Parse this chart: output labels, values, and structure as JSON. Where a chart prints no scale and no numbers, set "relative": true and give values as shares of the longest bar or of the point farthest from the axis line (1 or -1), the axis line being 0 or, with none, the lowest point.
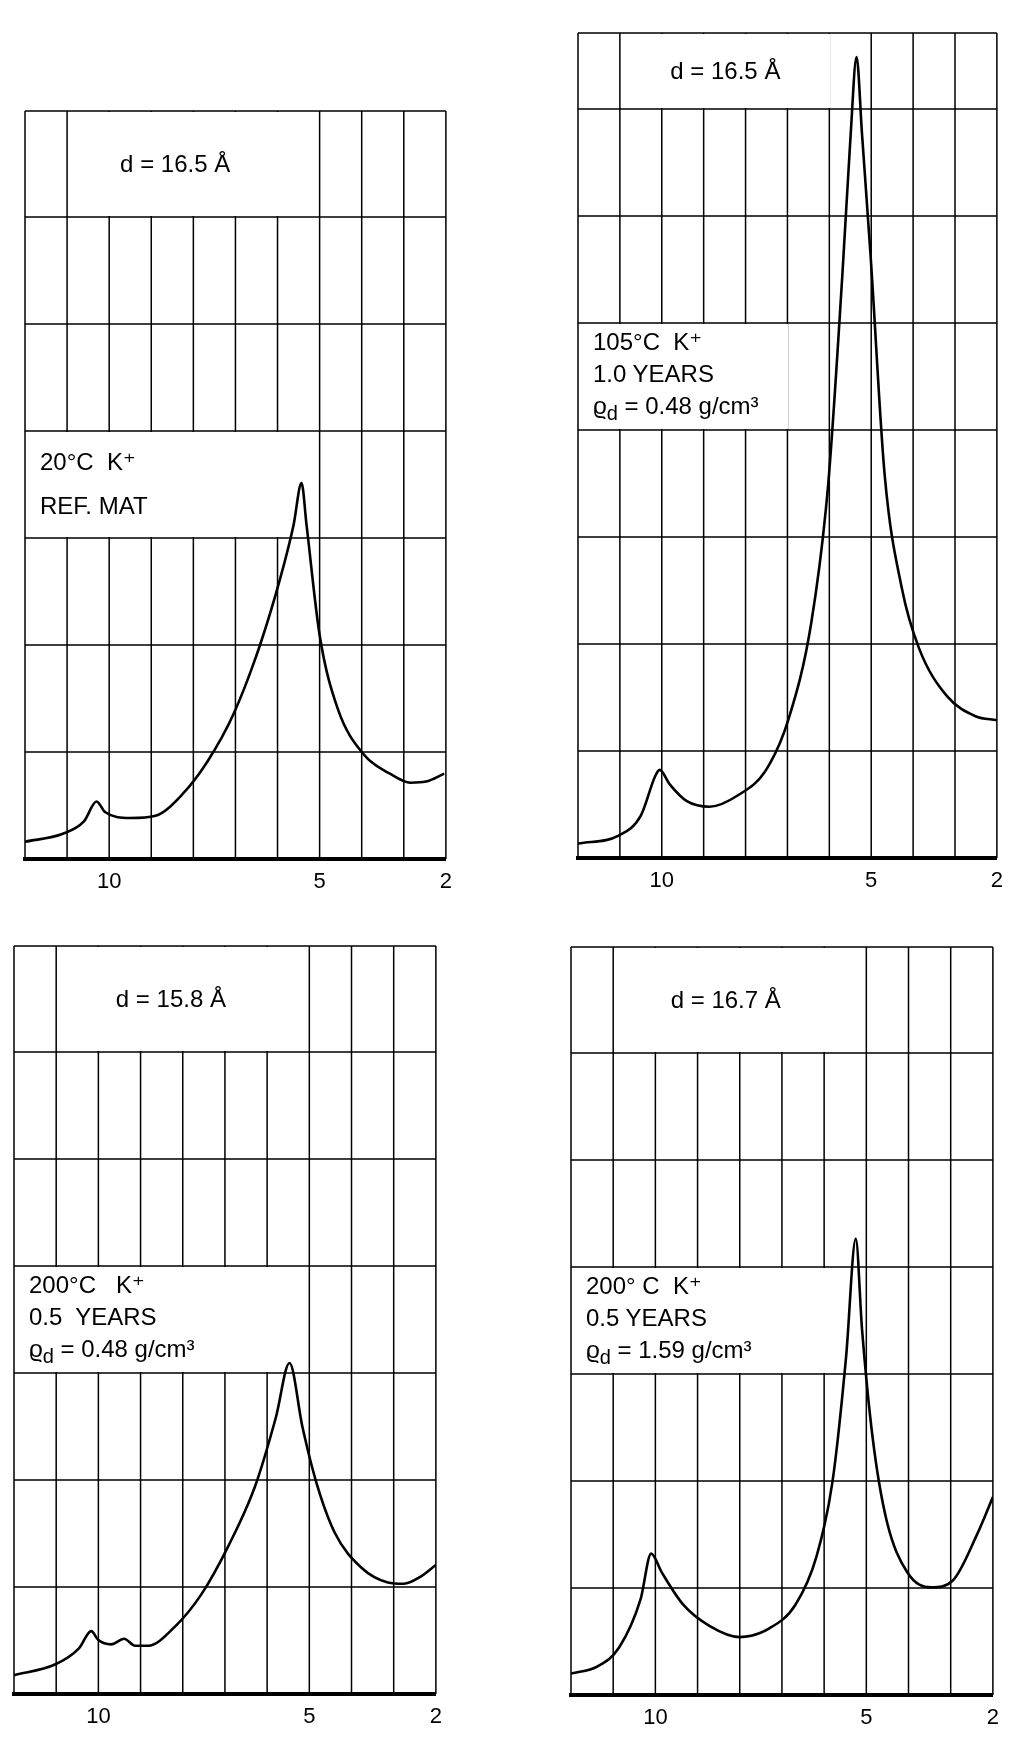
{
  "chart_data": [
    {
      "type": "line",
      "relative": true,
      "color": "#000000",
      "marker": "none",
      "line_style": "solid",
      "grid": true,
      "xlim": [
        12,
        2
      ],
      "xticks": [
        {
          "value": 12,
          "label": null
        },
        {
          "value": 11,
          "label": null
        },
        10,
        {
          "value": 9,
          "label": null
        },
        {
          "value": 8,
          "label": null
        },
        {
          "value": 7,
          "label": null
        },
        {
          "value": 6,
          "label": null
        },
        5,
        {
          "value": 4,
          "label": null
        },
        {
          "value": 3,
          "label": null
        },
        2
      ],
      "x": [
        12,
        11.1,
        10.6,
        10.3,
        10.1,
        9.5,
        8.9,
        8.27,
        7.65,
        7.04,
        6.42,
        5.93,
        5.62,
        5.43,
        5.31,
        5.0,
        4.57,
        3.95,
        3.33,
        2.84,
        2.47,
        2.04
      ],
      "values": [
        0.046,
        0.067,
        0.1,
        0.153,
        0.125,
        0.109,
        0.115,
        0.171,
        0.262,
        0.387,
        0.568,
        0.749,
        0.888,
        1.0,
        0.888,
        0.596,
        0.4,
        0.278,
        0.227,
        0.203,
        0.206,
        0.227
      ],
      "annotations": [
        "d = 16.5 Å",
        "20°C  K⁺",
        "REF. MAT"
      ]
    },
    {
      "type": "line",
      "relative": true,
      "color": "#000000",
      "marker": "none",
      "line_style": "solid",
      "grid": true,
      "xlim": [
        12,
        2
      ],
      "xticks": [
        {
          "value": 12,
          "label": null
        },
        {
          "value": 11,
          "label": null
        },
        10,
        {
          "value": 9,
          "label": null
        },
        {
          "value": 8,
          "label": null
        },
        {
          "value": 7,
          "label": null
        },
        {
          "value": 6,
          "label": null
        },
        5,
        {
          "value": 4,
          "label": null
        },
        {
          "value": 3,
          "label": null
        },
        2
      ],
      "x": [
        12,
        11.03,
        10.5,
        10.15,
        10.05,
        9.81,
        9.4,
        8.86,
        8.19,
        7.51,
        6.97,
        6.43,
        6.03,
        5.69,
        5.49,
        5.35,
        5.22,
        5.01,
        4.68,
        4.27,
        3.86,
        3.19,
        2.51,
        2.0
      ],
      "values": [
        0.018,
        0.028,
        0.053,
        0.103,
        0.11,
        0.092,
        0.071,
        0.064,
        0.078,
        0.11,
        0.174,
        0.294,
        0.465,
        0.727,
        0.904,
        1.0,
        0.904,
        0.748,
        0.479,
        0.337,
        0.262,
        0.202,
        0.177,
        0.172
      ],
      "annotations": [
        "d = 16.5 Å",
        "105°C  K⁺",
        "1.0 YEARS",
        "ϱ$_{d}$ = 0.48 g/cm³"
      ]
    },
    {
      "type": "line",
      "relative": true,
      "color": "#000000",
      "marker": "none",
      "line_style": "solid",
      "grid": true,
      "xlim": [
        12,
        2
      ],
      "xticks": [
        {
          "value": 12,
          "label": null
        },
        {
          "value": 11,
          "label": null
        },
        10,
        {
          "value": 9,
          "label": null
        },
        {
          "value": 8,
          "label": null
        },
        {
          "value": 7,
          "label": null
        },
        {
          "value": 6,
          "label": null
        },
        5,
        {
          "value": 4,
          "label": null
        },
        {
          "value": 3,
          "label": null
        },
        2
      ],
      "x": [
        12,
        11.03,
        10.46,
        10.17,
        10.0,
        9.7,
        9.39,
        9.13,
        8.82,
        8.19,
        7.56,
        6.92,
        6.29,
        5.79,
        5.47,
        5.16,
        4.84,
        4.4,
        3.77,
        3.14,
        2.76,
        2.38,
        2.0
      ],
      "values": [
        0.057,
        0.089,
        0.138,
        0.19,
        0.163,
        0.15,
        0.167,
        0.146,
        0.146,
        0.203,
        0.301,
        0.447,
        0.626,
        0.837,
        1.0,
        0.805,
        0.642,
        0.488,
        0.382,
        0.337,
        0.333,
        0.353,
        0.39
      ],
      "annotations": [
        "d = 15.8 Å",
        "200°C   K⁺",
        "0.5  YEARS",
        "ϱ$_{d}$ = 0.48 g/cm³"
      ]
    },
    {
      "type": "line",
      "relative": true,
      "color": "#000000",
      "marker": "none",
      "line_style": "solid",
      "grid": true,
      "xlim": [
        12,
        2
      ],
      "xticks": [
        {
          "value": 12,
          "label": null
        },
        {
          "value": 11,
          "label": null
        },
        10,
        {
          "value": 9,
          "label": null
        },
        {
          "value": 8,
          "label": null
        },
        {
          "value": 7,
          "label": null
        },
        {
          "value": 6,
          "label": null
        },
        5,
        {
          "value": 4,
          "label": null
        },
        {
          "value": 3,
          "label": null
        },
        2
      ],
      "x": [
        12,
        11.37,
        10.86,
        10.35,
        10.1,
        9.85,
        9.34,
        8.71,
        8.01,
        7.32,
        6.68,
        6.18,
        5.8,
        5.48,
        5.25,
        5.1,
        4.85,
        4.53,
        4.03,
        3.46,
        2.95,
        2.38,
        2.0
      ],
      "values": [
        0.047,
        0.063,
        0.104,
        0.21,
        0.31,
        0.269,
        0.198,
        0.151,
        0.127,
        0.145,
        0.198,
        0.304,
        0.469,
        0.741,
        1.0,
        0.8,
        0.564,
        0.387,
        0.269,
        0.236,
        0.251,
        0.351,
        0.434
      ],
      "annotations": [
        "d = 16.7 Å",
        "200° C  K⁺",
        "0.5 YEARS",
        "ϱ$_{d}$ = 1.59 g/cm³"
      ]
    }
  ]
}
